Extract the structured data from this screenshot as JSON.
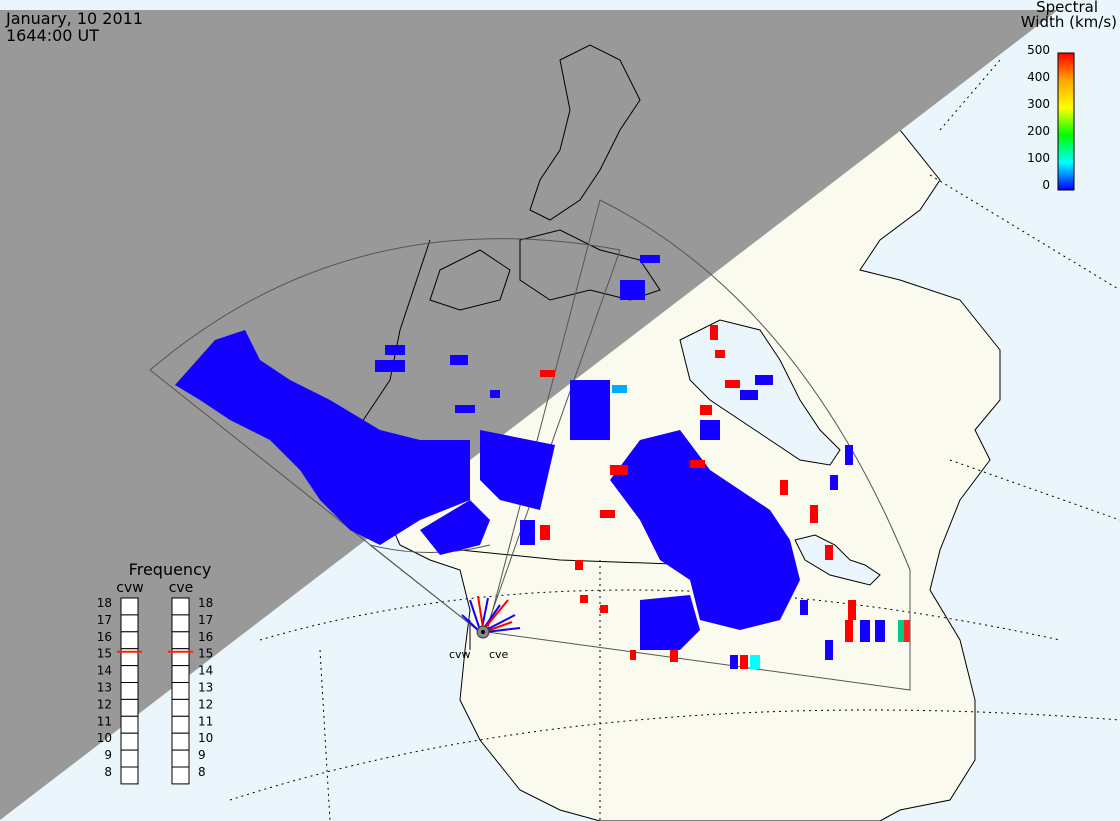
{
  "header": {
    "date": "January, 10 2011",
    "time": "1644:00 UT"
  },
  "colorbar": {
    "title_line1": "Spectral",
    "title_line2": "Width (km/s)",
    "ticks": [
      "500",
      "400",
      "300",
      "200",
      "100",
      "0"
    ],
    "stops": [
      "#ff0000",
      "#ffa500",
      "#ffff00",
      "#00ff00",
      "#00ffff",
      "#0000ff"
    ]
  },
  "frequency": {
    "title": "Frequency",
    "labels": [
      "cvw",
      "cve"
    ],
    "scale": [
      "18",
      "17",
      "16",
      "15",
      "14",
      "13",
      "12",
      "11",
      "10",
      "9",
      "8"
    ],
    "cvw_value": "15",
    "cve_value": "15"
  },
  "radars": {
    "west": "cvw",
    "east": "cve"
  },
  "colors": {
    "night": "#999999",
    "land": "#fbfaee",
    "ocean": "#eaf6fc",
    "scatter_low": "#1400ff",
    "scatter_high": "#ff0000",
    "scatter_mid": "#00ffff"
  }
}
